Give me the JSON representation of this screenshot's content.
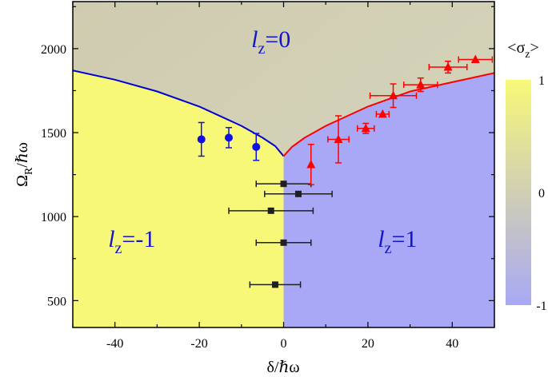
{
  "chart_data": {
    "type": "scatter",
    "xlabel": "δ/ℏω",
    "ylabel_main": "Ω",
    "ylabel_sub": "R",
    "ylabel_tail": "/ℏω",
    "xlim": [
      -50,
      50
    ],
    "ylim": [
      340,
      2280
    ],
    "x_ticks": [
      -40,
      -20,
      0,
      20,
      40
    ],
    "y_ticks": [
      500,
      1000,
      1500,
      2000
    ],
    "colorbar": {
      "title_main": "<σ",
      "title_sub": "z",
      "title_tail": ">",
      "range": [
        -1,
        1
      ],
      "ticks": [
        "1",
        "0",
        "-1"
      ],
      "colors": {
        "top": "#f8f878",
        "middle": "#d0cfb4",
        "bottom": "#a8a8f6"
      }
    },
    "regions": [
      {
        "label_main": "l",
        "label_sub": "z",
        "label_tail": "=0",
        "at": [
          -3,
          2010
        ],
        "fill": "#d2d0b6"
      },
      {
        "label_main": "l",
        "label_sub": "z",
        "label_tail": "=-1",
        "at": [
          -36,
          820
        ],
        "fill": "#f8f878"
      },
      {
        "label_main": "l",
        "label_sub": "z",
        "label_tail": "=1",
        "at": [
          27,
          820
        ],
        "fill": "#a8a8f6"
      }
    ],
    "boundaries": [
      {
        "color": "#0000d0",
        "points": [
          [
            -50,
            1870
          ],
          [
            -40,
            1815
          ],
          [
            -30,
            1745
          ],
          [
            -20,
            1655
          ],
          [
            -10,
            1540
          ],
          [
            -5,
            1470
          ],
          [
            -2,
            1420
          ],
          [
            0,
            1360
          ]
        ]
      },
      {
        "color": "#ff0000",
        "points": [
          [
            0,
            1360
          ],
          [
            2,
            1415
          ],
          [
            5,
            1470
          ],
          [
            10,
            1540
          ],
          [
            20,
            1655
          ],
          [
            30,
            1745
          ],
          [
            40,
            1800
          ],
          [
            50,
            1855
          ]
        ]
      }
    ],
    "series": [
      {
        "marker": "circle",
        "color": "#1010e0",
        "points": [
          {
            "x": -19.5,
            "y": 1460,
            "yerr": 100
          },
          {
            "x": -13,
            "y": 1470,
            "yerr": 60
          },
          {
            "x": -6.5,
            "y": 1415,
            "yerr": 80
          }
        ]
      },
      {
        "marker": "square",
        "color": "#202020",
        "points": [
          {
            "x": 0,
            "y": 1195,
            "xerr": 6.5
          },
          {
            "x": 3.5,
            "y": 1135,
            "xerr": 8
          },
          {
            "x": -3,
            "y": 1035,
            "xerr": 10
          },
          {
            "x": 0,
            "y": 845,
            "xerr": 6.5
          },
          {
            "x": -2,
            "y": 595,
            "xerr": 6
          }
        ]
      },
      {
        "marker": "triangle",
        "color": "#ff0000",
        "points": [
          {
            "x": 6.5,
            "y": 1310,
            "yerr": 120
          },
          {
            "x": 13,
            "y": 1460,
            "yerr": 140,
            "xerr": 2.5
          },
          {
            "x": 19.5,
            "y": 1525,
            "yerr": 30,
            "xerr": 2
          },
          {
            "x": 23.5,
            "y": 1610,
            "xerr": 1.5
          },
          {
            "x": 26,
            "y": 1720,
            "yerr": 70,
            "xerr": 5.5
          },
          {
            "x": 32.5,
            "y": 1785,
            "yerr": 40,
            "xerr": 4
          },
          {
            "x": 39,
            "y": 1890,
            "yerr": 35,
            "xerr": 4.5
          },
          {
            "x": 45.5,
            "y": 1935,
            "xerr": 4
          }
        ]
      }
    ]
  }
}
